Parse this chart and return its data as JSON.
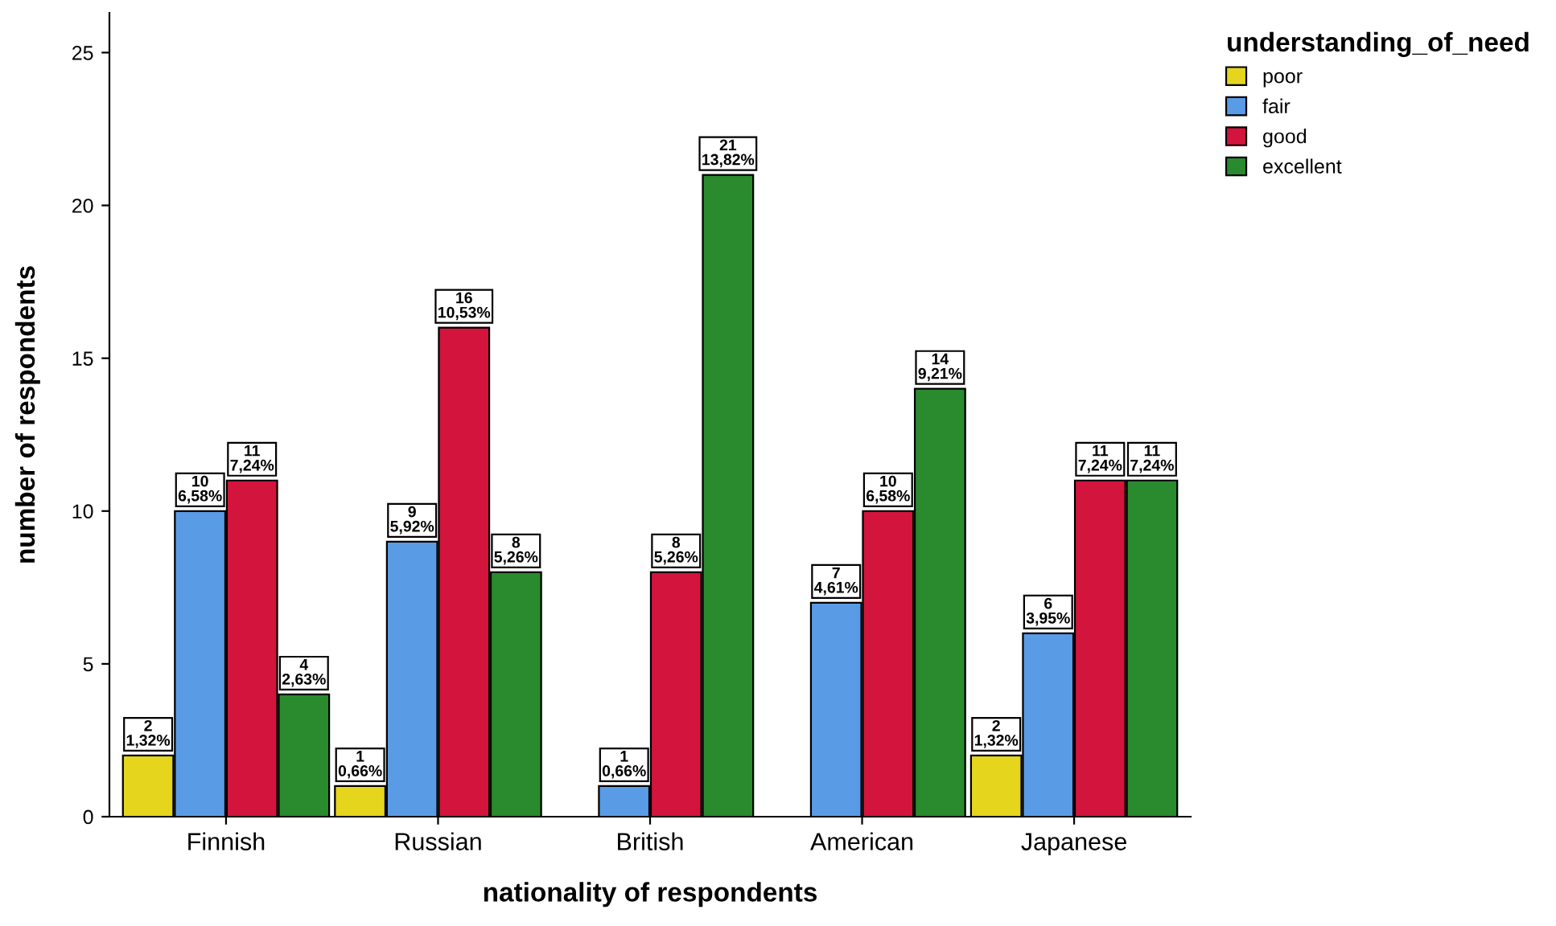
{
  "chart_data": {
    "type": "bar",
    "xlabel": "nationality of respondents",
    "ylabel": "number of respondents",
    "legend_title": "understanding_of_need",
    "legend": "top right",
    "categories": [
      "Finnish",
      "Russian",
      "British",
      "American",
      "Japanese"
    ],
    "ylim": [
      0,
      26.3
    ],
    "yticks": [
      0,
      5,
      10,
      15,
      20,
      25
    ],
    "grid": false,
    "series": [
      {
        "name": "poor",
        "color": "#e5d51c",
        "values": [
          2,
          1,
          0,
          0,
          2
        ],
        "value_labels": [
          "2\n1,32%",
          "1\n0,66%",
          null,
          null,
          "2\n1,32%"
        ]
      },
      {
        "name": "fair",
        "color": "#5a9be6",
        "values": [
          10,
          9,
          1,
          7,
          6
        ],
        "value_labels": [
          "10\n6,58%",
          "9\n5,92%",
          "1\n0,66%",
          "7\n4,61%",
          "6\n3,95%"
        ]
      },
      {
        "name": "good",
        "color": "#d3143c",
        "values": [
          11,
          16,
          8,
          10,
          11
        ],
        "value_labels": [
          "11\n7,24%",
          "16\n10,53%",
          "8\n5,26%",
          "10\n6,58%",
          "11\n7,24%"
        ]
      },
      {
        "name": "excellent",
        "color": "#2a8a2e",
        "values": [
          4,
          8,
          21,
          14,
          11
        ],
        "value_labels": [
          "4\n2,63%",
          "8\n5,26%",
          "21\n13,82%",
          "14\n9,21%",
          "11\n7,24%"
        ]
      }
    ]
  }
}
